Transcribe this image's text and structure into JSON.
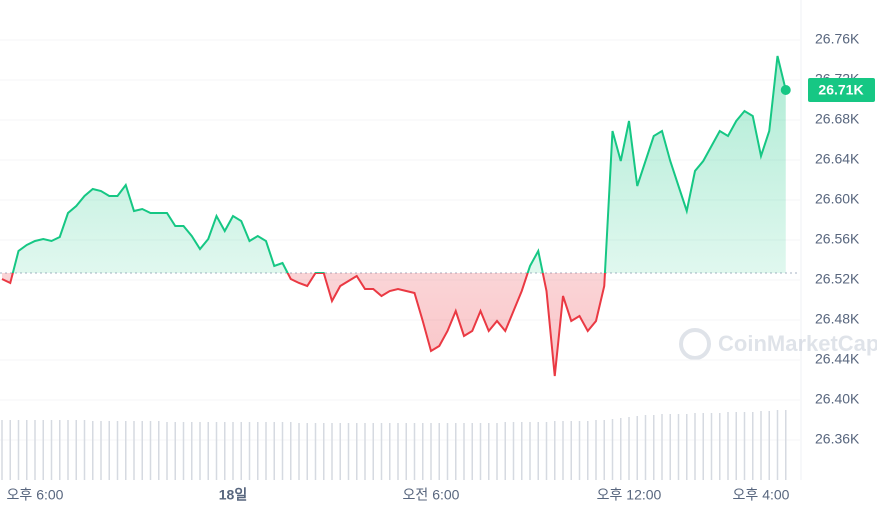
{
  "chart_data": {
    "type": "line",
    "series": [
      {
        "name": "price",
        "color_up": "#16c784",
        "color_down": "#ea3943",
        "values": [
          26521,
          26517,
          26549,
          26555,
          26559,
          26561,
          26559,
          26563,
          26587,
          26594,
          26604,
          26611,
          26609,
          26604,
          26604,
          26615,
          26589,
          26591,
          26587,
          26587,
          26587,
          26574,
          26574,
          26564,
          26551,
          26561,
          26584,
          26569,
          26584,
          26579,
          26559,
          26564,
          26559,
          26534,
          26537,
          26521,
          26517,
          26514,
          26527,
          26527,
          26499,
          26514,
          26519,
          26524,
          26511,
          26511,
          26504,
          26509,
          26511,
          26509,
          26507,
          26479,
          26449,
          26454,
          26469,
          26489,
          26464,
          26469,
          26489,
          26469,
          26479,
          26469,
          26489,
          26509,
          26534,
          26549,
          26509,
          26424,
          26504,
          26479,
          26484,
          26469,
          26479,
          26514,
          26669,
          26639,
          26679,
          26614,
          26639,
          26664,
          26669,
          26639,
          26614,
          26589,
          26629,
          26639,
          26654,
          26669,
          26664,
          26679,
          26689,
          26684,
          26644,
          26669,
          26744,
          26710
        ],
        "last_label": "26.71K"
      }
    ],
    "volume": [
      60,
      60,
      60,
      60,
      60,
      60,
      60,
      60,
      60,
      60,
      60,
      59,
      59,
      59,
      59,
      59,
      59,
      59,
      59,
      59,
      58,
      58,
      58,
      58,
      58,
      58,
      58,
      58,
      58,
      58,
      58,
      58,
      58,
      58,
      58,
      58,
      57,
      57,
      57,
      57,
      57,
      57,
      57,
      57,
      57,
      57,
      57,
      57,
      57,
      57,
      57,
      57,
      57,
      57,
      57,
      57,
      57,
      57,
      57,
      57,
      57,
      58,
      58,
      58,
      58,
      58,
      58,
      59,
      59,
      59,
      59,
      59,
      60,
      60,
      61,
      62,
      63,
      64,
      65,
      65,
      66,
      66,
      66,
      66,
      67,
      67,
      67,
      67,
      68,
      68,
      68,
      68,
      69,
      69,
      70,
      70
    ],
    "baseline": 26527,
    "ylim": [
      26320,
      26800
    ],
    "yticks": [
      {
        "value": 26360,
        "label": "26.36K"
      },
      {
        "value": 26400,
        "label": "26.40K"
      },
      {
        "value": 26440,
        "label": "26.44K"
      },
      {
        "value": 26480,
        "label": "26.48K"
      },
      {
        "value": 26520,
        "label": "26.52K"
      },
      {
        "value": 26560,
        "label": "26.56K"
      },
      {
        "value": 26600,
        "label": "26.60K"
      },
      {
        "value": 26640,
        "label": "26.64K"
      },
      {
        "value": 26680,
        "label": "26.68K"
      },
      {
        "value": 26720,
        "label": "26.72K"
      },
      {
        "value": 26760,
        "label": "26.76K"
      }
    ],
    "xticks": [
      {
        "value": 4,
        "label": "오후 6:00"
      },
      {
        "value": 28,
        "label": "18일"
      },
      {
        "value": 52,
        "label": "오전 6:00"
      },
      {
        "value": 76,
        "label": "오후 12:00"
      },
      {
        "value": 92,
        "label": "오후 4:00"
      }
    ],
    "grid": true,
    "watermark": "CoinMarketCap"
  }
}
